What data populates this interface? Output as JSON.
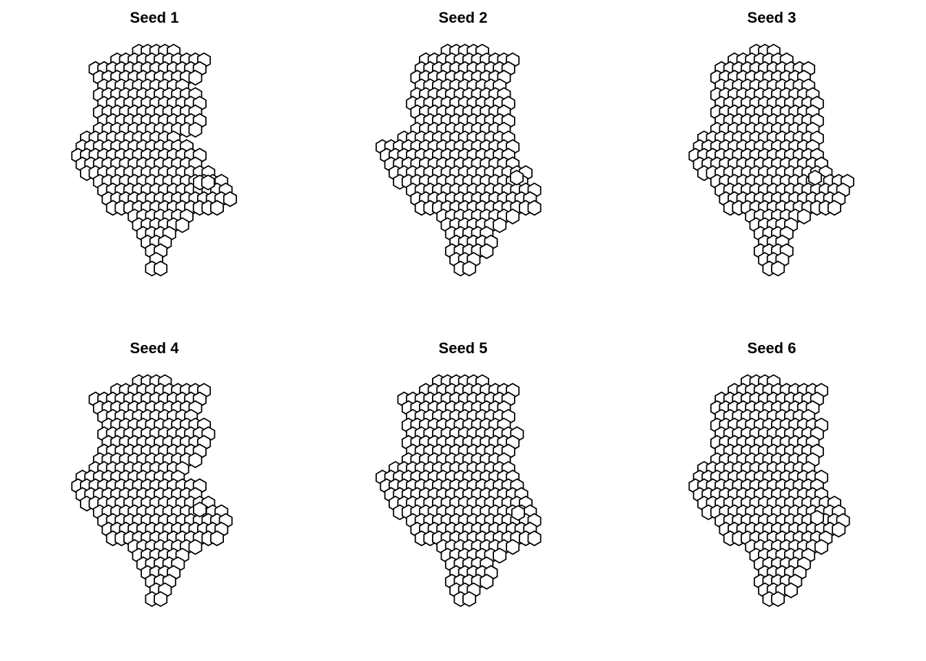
{
  "panels": [
    {
      "title": "Seed 1",
      "seed": 1
    },
    {
      "title": "Seed 2",
      "seed": 2
    },
    {
      "title": "Seed 3",
      "seed": 3
    },
    {
      "title": "Seed 4",
      "seed": 4
    },
    {
      "title": "Seed 5",
      "seed": 5
    },
    {
      "title": "Seed 6",
      "seed": 6
    }
  ],
  "colors": {
    "hex_fill": "#ffffff",
    "hex_stroke": "#000000",
    "background": "#ffffff"
  }
}
